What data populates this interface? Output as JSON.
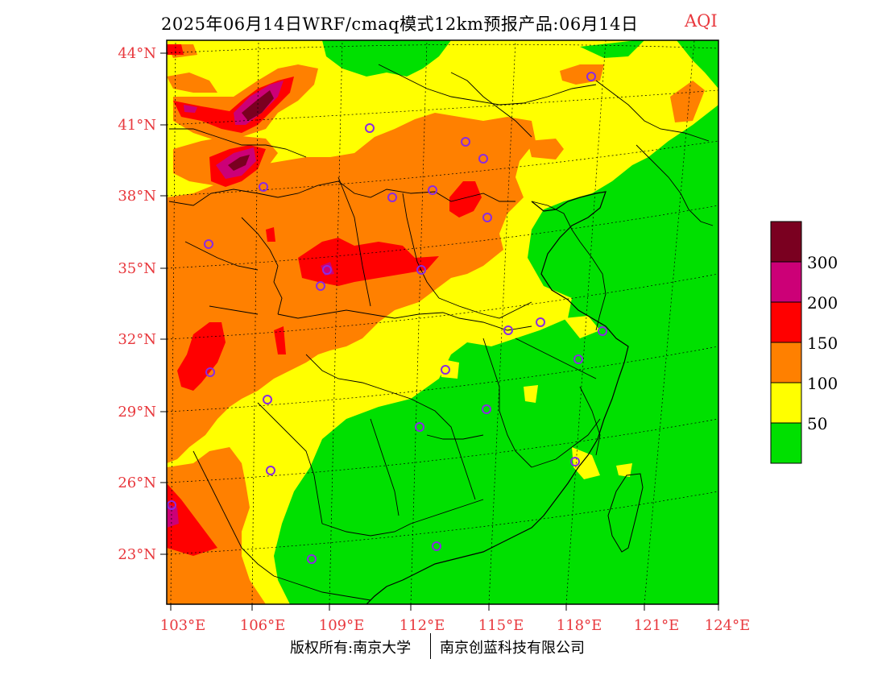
{
  "title": {
    "main": "2025年06月14日WRF/cmaq模式12km预报产品:06月14日",
    "variable": "AQI"
  },
  "axes": {
    "latitude_ticks": [
      "44°N",
      "41°N",
      "38°N",
      "35°N",
      "32°N",
      "29°N",
      "26°N",
      "23°N"
    ],
    "longitude_ticks": [
      "103°E",
      "106°E",
      "109°E",
      "112°E",
      "115°E",
      "118°E",
      "121°E",
      "124°E"
    ]
  },
  "legend": {
    "labels": [
      "300",
      "200",
      "150",
      "100",
      "50"
    ],
    "colors": [
      "#7a0020",
      "#cc0077",
      "#ff0000",
      "#ff8000",
      "#ffff00",
      "#00e000"
    ]
  },
  "colors": {
    "label_red": "#e8383d",
    "good": "#00e000",
    "moderate": "#ffff00",
    "usg": "#ff8000",
    "unhealthy": "#ff0000",
    "very_unhealthy": "#cc0077",
    "hazardous": "#7a0020",
    "city_marker": "#8a2be2"
  },
  "copyright": {
    "left": "版权所有:南京大学",
    "right": "南京创蓝科技有限公司"
  }
}
